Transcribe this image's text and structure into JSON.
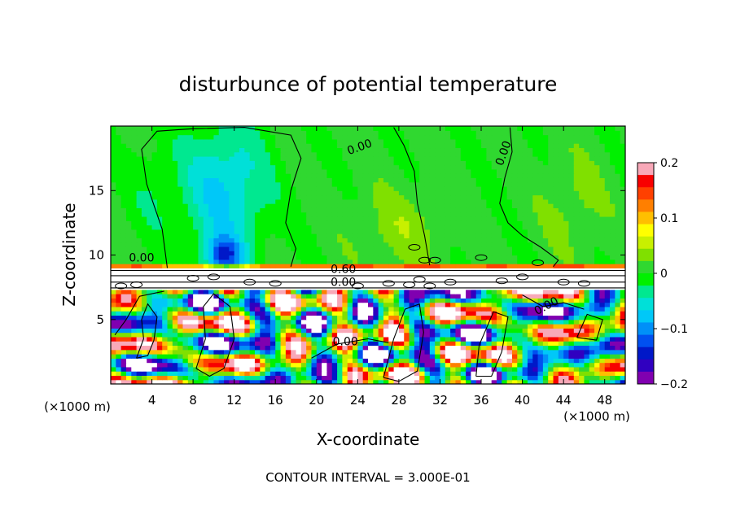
{
  "chart_data": {
    "type": "heatmap",
    "title": "disturbunce of potential temperature",
    "xlabel": "X-coordinate",
    "ylabel": "Z-coordinate",
    "x_unit_label": "(×1000 m)",
    "x_unit_label_right": "(×1000 m)",
    "footer": "CONTOUR INTERVAL = 3.000E-01",
    "xlim": [
      0,
      50
    ],
    "ylim": [
      0,
      20
    ],
    "x_ticks": [
      4,
      8,
      12,
      16,
      20,
      24,
      28,
      32,
      36,
      40,
      44,
      48
    ],
    "y_ticks": [
      5,
      10,
      15
    ],
    "contour_labels": [
      {
        "text": "0.00",
        "x": 3,
        "y": 9.5
      },
      {
        "text": "0.00",
        "x": 24.3,
        "y": 18.1
      },
      {
        "text": "0.00",
        "x": 38.5,
        "y": 17.8
      },
      {
        "text": "0.60",
        "x": 22.6,
        "y": 8.6
      },
      {
        "text": "0.00",
        "x": 22.6,
        "y": 7.6
      },
      {
        "text": "0.00",
        "x": 22.8,
        "y": 3.0
      },
      {
        "text": "0.00",
        "x": 42.5,
        "y": 5.8
      }
    ],
    "colorbar": {
      "min": -0.2,
      "max": 0.2,
      "ticks": [
        0.2,
        0.1,
        0,
        -0.1,
        -0.2
      ],
      "tick_labels": [
        "0.2",
        "0.1",
        "0",
        "−0.1",
        "−0.2"
      ],
      "colors": [
        "#f8a8b8",
        "#f80000",
        "#ff4000",
        "#ff7f00",
        "#ffbf00",
        "#ffff00",
        "#c8f000",
        "#80e000",
        "#30d830",
        "#00f000",
        "#00e890",
        "#00e0d8",
        "#00c8f8",
        "#0090f8",
        "#0050f0",
        "#0018c8",
        "#3000c0",
        "#8000b0"
      ]
    },
    "grid": false,
    "legend": "colorbar-right"
  }
}
